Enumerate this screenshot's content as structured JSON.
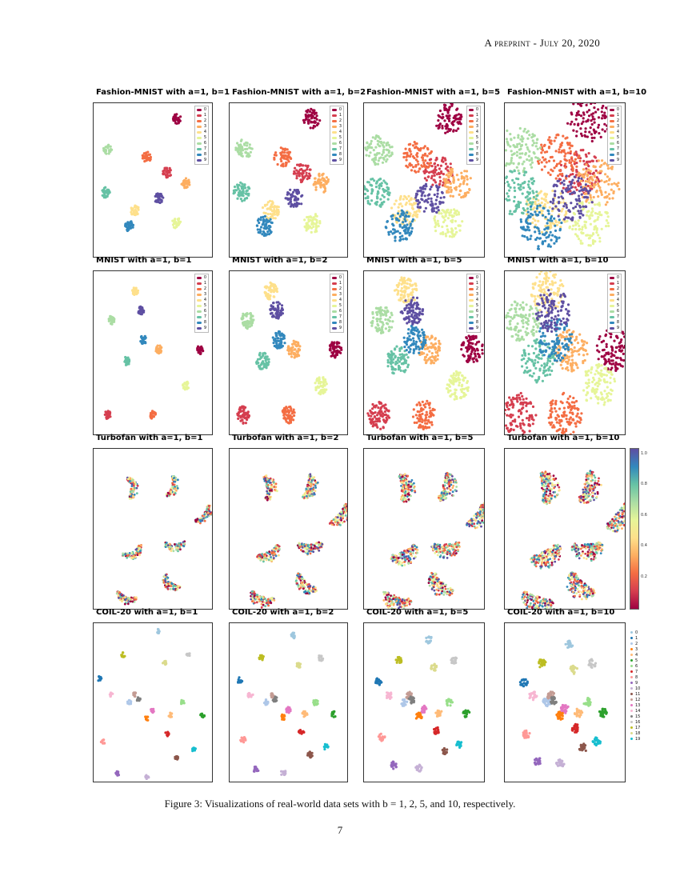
{
  "header": {
    "text": "A preprint - July 20, 2020"
  },
  "figure": {
    "caption": "Figure 3: Visualizations of real-world data sets with b = 1, 2, 5, and 10, respectively.",
    "page_number": "7",
    "rows": [
      {
        "dataset": "fashion",
        "titles": [
          "Fashion-MNIST with a=1, b=1",
          "Fashion-MNIST with a=1, b=2",
          "Fashion-MNIST with a=1, b=5",
          "Fashion-MNIST with a=1, b=10"
        ],
        "legend_labels": [
          "0",
          "1",
          "2",
          "3",
          "4",
          "5",
          "6",
          "7",
          "8",
          "9"
        ]
      },
      {
        "dataset": "mnist",
        "titles": [
          "MNIST with a=1, b=1",
          "MNIST with a=1, b=2",
          "MNIST with a=1, b=5",
          "MNIST with a=1, b=10"
        ],
        "legend_labels": [
          "0",
          "1",
          "2",
          "3",
          "4",
          "5",
          "6",
          "7",
          "8",
          "9"
        ]
      },
      {
        "dataset": "turbofan",
        "titles": [
          "Turbofan with a=1, b=1",
          "Turbofan with a=1, b=2",
          "Turbofan with a=1, b=5",
          "Turbofan with a=1, b=10"
        ],
        "colorbar_ticks": [
          "1.0",
          "0.8",
          "0.6",
          "0.4",
          "0.2"
        ]
      },
      {
        "dataset": "coil20",
        "titles": [
          "COIL-20 with a=1, b=1",
          "COIL-20 with a=1, b=2",
          "COIL-20 with a=1, b=5",
          "COIL-20 with a=1, b=10"
        ],
        "legend_labels": [
          "0",
          "1",
          "2",
          "3",
          "4",
          "5",
          "6",
          "7",
          "8",
          "9",
          "10",
          "11",
          "12",
          "13",
          "14",
          "15",
          "16",
          "17",
          "18",
          "19"
        ]
      }
    ]
  },
  "palettes": {
    "spectral10": [
      "#9e0142",
      "#d53e4f",
      "#f46d43",
      "#fdae61",
      "#fee08b",
      "#e6f598",
      "#abdda4",
      "#66c2a5",
      "#3288bd",
      "#5e4fa2"
    ],
    "coil20": [
      "#9ec7de",
      "#1f77b4",
      "#aec7e8",
      "#ff7f0e",
      "#ffbb78",
      "#2ca02c",
      "#98df8a",
      "#d62728",
      "#ff9896",
      "#9467bd",
      "#c5b0d5",
      "#8c564b",
      "#c49c94",
      "#e377c2",
      "#f7b6d2",
      "#7f7f7f",
      "#c7c7c7",
      "#bcbd22",
      "#dbdb8d",
      "#17becf"
    ]
  }
}
